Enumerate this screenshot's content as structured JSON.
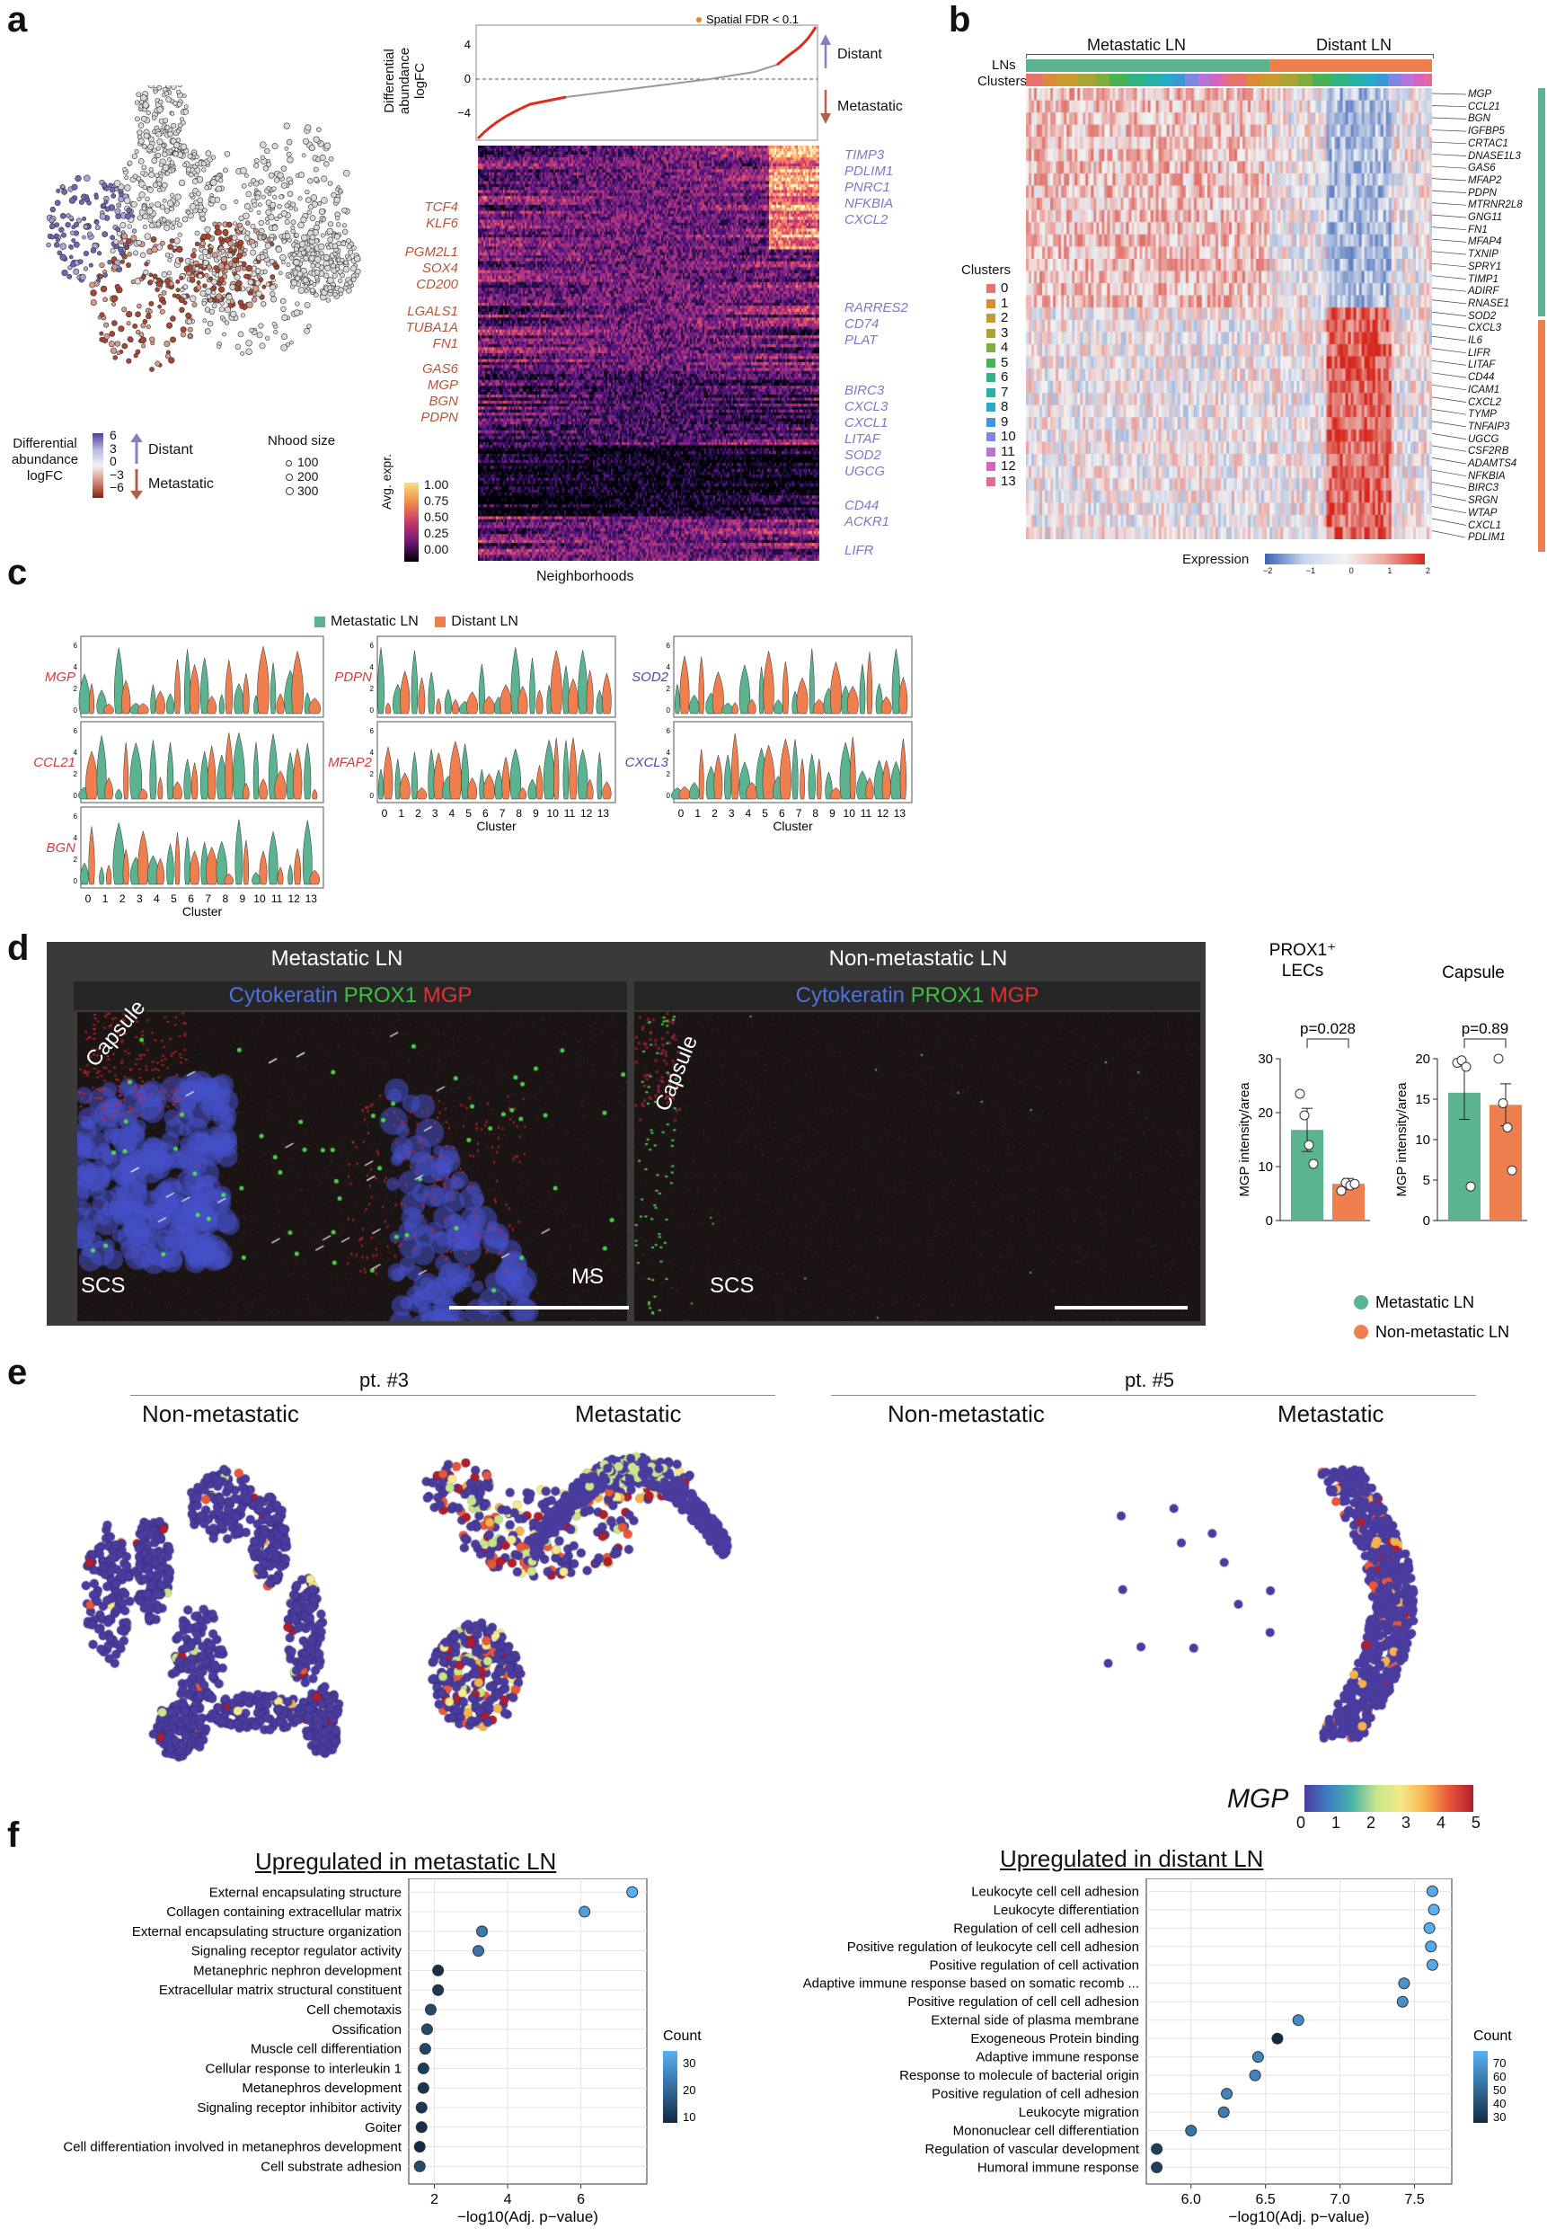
{
  "panel_labels": {
    "a": "a",
    "b": "b",
    "c": "c",
    "d": "d",
    "e": "e",
    "f": "f"
  },
  "panel_a": {
    "umap_legend_title": "Differential abundance logFC",
    "umap_ticks": [
      "6",
      "3",
      "0",
      "−3",
      "−6"
    ],
    "arrow_distant": "Distant",
    "arrow_metastatic": "Metastatic",
    "nhood_title": "Nhood size",
    "nhood_sizes": [
      "100",
      "200",
      "300"
    ],
    "da_ylabel": "Differential abundance logFC",
    "da_legend": "Spatial FDR < 0.1",
    "da_yticks": [
      "4",
      "0",
      "−4"
    ],
    "da_distant": "Distant",
    "da_metastatic": "Metastatic",
    "heat_legend_title": "Avg. expr.",
    "heat_ticks": [
      "1.00",
      "0.75",
      "0.50",
      "0.25",
      "0.00"
    ],
    "xlabel": "Neighborhoods",
    "genes_left": [
      "TCF4",
      "KLF6",
      "PGM2L1",
      "SOX4",
      "CD200",
      "LGALS1",
      "TUBA1A",
      "FN1",
      "GAS6",
      "MGP",
      "BGN",
      "PDPN"
    ],
    "genes_right": [
      "TIMP3",
      "PDLIM1",
      "PNRC1",
      "NFKBIA",
      "CXCL2",
      "RARRES2",
      "CD74",
      "PLAT",
      "BIRC3",
      "CXCL3",
      "CXCL1",
      "LITAF",
      "SOD2",
      "UGCG",
      "CD44",
      "ACKR1",
      "LIFR"
    ]
  },
  "panel_b": {
    "group_metastatic": "Metastatic LN",
    "group_distant": "Distant LN",
    "row_lns": "LNs",
    "row_clusters": "Clusters",
    "clusters_title": "Clusters",
    "clusters": [
      "0",
      "1",
      "2",
      "3",
      "4",
      "5",
      "6",
      "7",
      "8",
      "9",
      "10",
      "11",
      "12",
      "13"
    ],
    "cluster_colors": [
      "#e8736e",
      "#d98a3a",
      "#c99a2e",
      "#a9a433",
      "#7fae3c",
      "#47b353",
      "#2fb383",
      "#25b0a8",
      "#25aac8",
      "#3a97d8",
      "#7d86e0",
      "#b474d8",
      "#d763c0",
      "#e66a98"
    ],
    "expr_title": "Expression",
    "expr_ticks": [
      "−2",
      "−1",
      "0",
      "1",
      "2"
    ],
    "genes": [
      "MGP",
      "CCL21",
      "BGN",
      "IGFBP5",
      "CRTAC1",
      "DNASE1L3",
      "GAS6",
      "MFAP2",
      "PDPN",
      "MTRNR2L8",
      "GNG11",
      "FN1",
      "MFAP4",
      "TXNIP",
      "SPRY1",
      "TIMP1",
      "ADIRF",
      "RNASE1",
      "SOD2",
      "CXCL3",
      "IL6",
      "LIFR",
      "LITAF",
      "CD44",
      "ICAM1",
      "CXCL2",
      "TYMP",
      "TNFAIP3",
      "UGCG",
      "CSF2RB",
      "ADAMTS4",
      "NFKBIA",
      "BIRC3",
      "SRGN",
      "WTAP",
      "CXCL1",
      "PDLIM1"
    ]
  },
  "panel_c": {
    "legend_metastatic": "Metastatic LN",
    "legend_distant": "Distant LN",
    "color_metastatic": "#5bb38f",
    "color_distant": "#f07f4f",
    "xlabel": "Cluster",
    "xticks": [
      "0",
      "1",
      "2",
      "3",
      "4",
      "5",
      "6",
      "7",
      "8",
      "9",
      "10",
      "11",
      "12",
      "13"
    ],
    "yticks": [
      "6",
      "4",
      "2",
      "0"
    ],
    "genes_col1": [
      "MGP",
      "CCL21",
      "BGN"
    ],
    "genes_col2": [
      "PDPN",
      "MFAP2"
    ],
    "genes_col3": [
      "SOD2",
      "CXCL3"
    ]
  },
  "panel_d": {
    "title_left": "Metastatic LN",
    "title_right": "Non-metastatic LN",
    "stain_cytokeratin": "Cytokeratin",
    "stain_prox1": "PROX1",
    "stain_mgp": "MGP",
    "label_capsule": "Capsule",
    "label_scs": "SCS",
    "label_ms": "MS",
    "bar1_title": "PROX1⁺ LECs",
    "bar2_title": "Capsule",
    "bar_ylabel": "MGP intensity/area",
    "pval1": "p=0.028",
    "pval2": "p=0.89",
    "legend_met": "Metastatic LN",
    "legend_non": "Non-metastatic LN"
  },
  "chart_data": [
    {
      "type": "bar",
      "title": "PROX1⁺ LECs",
      "categories": [
        "Metastatic LN",
        "Non-metastatic LN"
      ],
      "values": [
        16.8,
        6.8
      ],
      "errors": [
        4.0,
        1.0
      ],
      "points": [
        [
          23.5,
          19.5,
          14,
          10.5
        ],
        [
          5.5,
          7,
          6.5,
          6.8
        ]
      ],
      "ylabel": "MGP intensity/area",
      "ylim": [
        0,
        30
      ],
      "yticks": [
        "0",
        "10",
        "20",
        "30"
      ],
      "annotation": "p=0.028"
    },
    {
      "type": "bar",
      "title": "Capsule",
      "categories": [
        "Metastatic LN",
        "Non-metastatic LN"
      ],
      "values": [
        15.8,
        14.3
      ],
      "errors": [
        3.3,
        2.6
      ],
      "points": [
        [
          19.5,
          19.8,
          19,
          4.2
        ],
        [
          20,
          14.5,
          11.5,
          6.2
        ]
      ],
      "ylabel": "MGP intensity/area",
      "ylim": [
        0,
        20
      ],
      "yticks": [
        "0",
        "5",
        "10",
        "15",
        "20"
      ],
      "annotation": "p=0.89"
    },
    {
      "type": "scatter",
      "title": "Upregulated in metastatic LN",
      "xlabel": "−log10(Adj. p−value)",
      "xticks": [
        "2",
        "4",
        "6"
      ],
      "xlim": [
        1.3,
        7.8
      ],
      "legend_title": "Count",
      "legend_ticks": [
        "30",
        "20",
        "10"
      ],
      "categories": [
        "External encapsulating structure",
        "Collagen containing extracellular matrix",
        "External encapsulating structure organization",
        "Signaling receptor regulator activity",
        "Metanephric nephron development",
        "Extracellular matrix structural constituent",
        "Cell chemotaxis",
        "Ossification",
        "Muscle cell differentiation",
        "Cellular response to interleukin 1",
        "Metanephros development",
        "Signaling receptor inhibitor activity",
        "Goiter",
        "Cell differentiation involved in metanephros development",
        "Cell substrate adhesion"
      ],
      "x": [
        7.4,
        6.1,
        3.3,
        3.2,
        2.1,
        2.1,
        1.9,
        1.8,
        1.75,
        1.7,
        1.7,
        1.65,
        1.65,
        1.6,
        1.6
      ],
      "count": [
        34,
        30,
        22,
        21,
        6,
        8,
        12,
        12,
        11,
        9,
        7,
        8,
        6,
        5,
        12
      ]
    },
    {
      "type": "scatter",
      "title": "Upregulated in distant LN",
      "xlabel": "−log10(Adj. p−value)",
      "xticks": [
        "6.0",
        "6.5",
        "7.0",
        "7.5"
      ],
      "xlim": [
        5.7,
        7.75
      ],
      "legend_title": "Count",
      "legend_ticks": [
        "70",
        "60",
        "50",
        "40",
        "30"
      ],
      "categories": [
        "Leukocyte cell cell adhesion",
        "Leukocyte differentiation",
        "Regulation of cell cell adhesion",
        "Positive regulation of leukocyte cell cell adhesion",
        "Positive regulation of cell activation",
        "Adaptive immune response based on somatic recomb ...",
        "Positive regulation of cell cell adhesion",
        "External side of plasma membrane",
        "Exogeneous Protein binding",
        "Adaptive immune response",
        "Response to molecule of bacterial origin",
        "Positive regulation of cell adhesion",
        "Leukocyte migration",
        "Mononuclear cell differentiation",
        "Regulation of vascular development",
        "Humoral immune response"
      ],
      "x": [
        7.62,
        7.63,
        7.6,
        7.61,
        7.62,
        7.43,
        7.42,
        6.72,
        6.58,
        6.45,
        6.43,
        6.24,
        6.22,
        6.0,
        5.77,
        5.77
      ],
      "count": [
        62,
        64,
        63,
        62,
        61,
        55,
        54,
        52,
        22,
        50,
        50,
        50,
        48,
        45,
        28,
        28
      ]
    }
  ],
  "panel_e": {
    "pt3": "pt. #3",
    "pt5": "pt. #5",
    "non": "Non-metastatic",
    "met": "Metastatic",
    "gene": "MGP",
    "ticks": [
      "0",
      "1",
      "2",
      "3",
      "4",
      "5"
    ]
  },
  "panel_f": {
    "title_left": "Upregulated in metastatic LN",
    "title_right": "Upregulated in distant LN"
  }
}
